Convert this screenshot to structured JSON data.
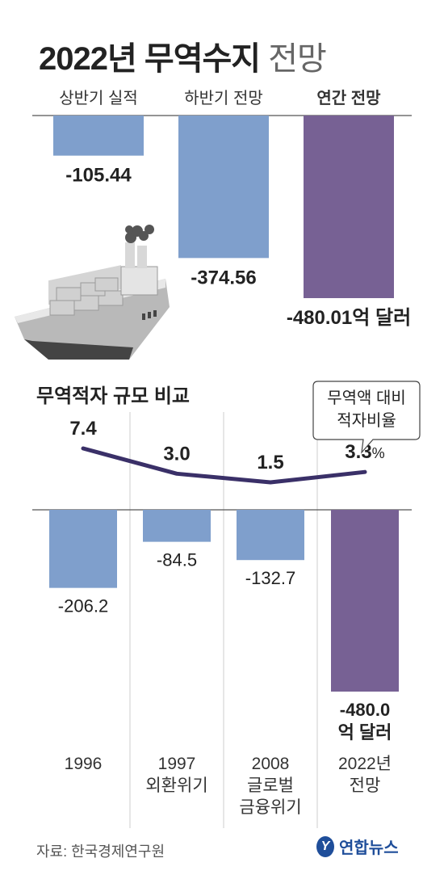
{
  "title": {
    "main": "2022년 무역수지",
    "sub": "전망"
  },
  "top_chart": {
    "categories": [
      "상반기 실적",
      "하반기 전망",
      "연간 전망"
    ],
    "category_bold": [
      false,
      false,
      true
    ],
    "values": [
      -105.44,
      -374.56,
      -480.01
    ],
    "labels": [
      "-105.44",
      "-374.56",
      "-480.01억 달러"
    ],
    "colors": [
      "#7f9fcc",
      "#7f9fcc",
      "#776194"
    ]
  },
  "bottom": {
    "heading": "무역적자 규모 비교",
    "bubble_lines": [
      "무역액 대비",
      "적자비율"
    ],
    "ratio_labels": [
      "7.4",
      "3.0",
      "1.5",
      "3.3"
    ],
    "ratio_unit": "%",
    "year_lines": [
      [
        "1996"
      ],
      [
        "1997",
        "외환위기"
      ],
      [
        "2008",
        "글로벌",
        "금융위기"
      ],
      [
        "2022년",
        "전망"
      ]
    ],
    "value_lines": [
      [
        "-206.2"
      ],
      [
        "-84.5"
      ],
      [
        "-132.7"
      ],
      [
        "-480.0",
        "억 달러"
      ]
    ]
  },
  "chart_data": [
    {
      "type": "bar",
      "categories": [
        "상반기 실적",
        "하반기 전망",
        "연간 전망"
      ],
      "values": [
        -105.44,
        -374.56,
        -480.01
      ],
      "unit": "억 달러"
    },
    {
      "type": "bar",
      "categories": [
        "1996",
        "1997 외환위기",
        "2008 글로벌 금융위기",
        "2022년 전망"
      ],
      "series": [
        {
          "name": "무역적자 규모",
          "values": [
            -206.2,
            -84.5,
            -132.7,
            -480.0
          ]
        },
        {
          "name": "무역액 대비 적자비율",
          "values": [
            7.4,
            3.0,
            1.5,
            3.3
          ]
        }
      ],
      "colors": [
        "#7f9fcc",
        "#7f9fcc",
        "#7f9fcc",
        "#776194"
      ],
      "line_color": "#3a3068"
    }
  ],
  "source": "자료: 한국경제연구원",
  "logo": {
    "mark": "Y",
    "text": "연합뉴스"
  }
}
